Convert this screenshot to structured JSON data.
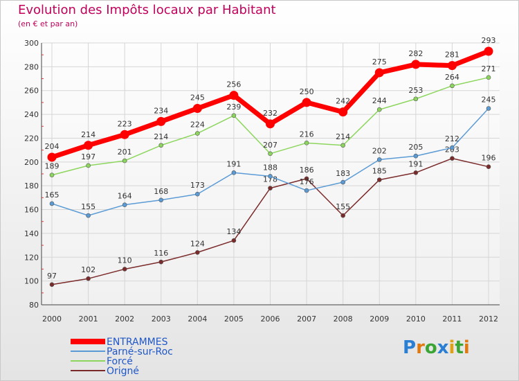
{
  "title": "Evolution des Impôts locaux par Habitant",
  "subtitle": "(en € et par an)",
  "logo": {
    "text": "Proxiti",
    "letters": [
      "P",
      "r",
      "o",
      "x",
      "i",
      "t",
      "i"
    ],
    "colors": [
      "#2a7fd4",
      "#e07a10",
      "#3aa535",
      "#2a7fd4",
      "#e0a010",
      "#3aa535",
      "#e07a10"
    ]
  },
  "chart_data": {
    "type": "line",
    "x": [
      "2000",
      "2001",
      "2002",
      "2003",
      "2004",
      "2005",
      "2006",
      "2007",
      "2008",
      "2009",
      "2010",
      "2011",
      "2012"
    ],
    "ylim": [
      80,
      300
    ],
    "yticks": [
      80,
      100,
      120,
      140,
      160,
      180,
      200,
      220,
      240,
      260,
      280,
      300
    ],
    "grid": true,
    "legend_position": "bottom-left",
    "series": [
      {
        "name": "ENTRAMMES",
        "color": "#ff0000",
        "values": [
          204,
          214,
          223,
          234,
          245,
          256,
          232,
          250,
          242,
          275,
          282,
          281,
          293
        ]
      },
      {
        "name": "Parné-sur-Roc",
        "color": "#5b9bd5",
        "values": [
          165,
          155,
          164,
          168,
          173,
          191,
          188,
          176,
          183,
          202,
          205,
          212,
          245
        ]
      },
      {
        "name": "Forcé",
        "color": "#8dd65e",
        "values": [
          189,
          197,
          201,
          214,
          224,
          239,
          207,
          216,
          214,
          244,
          253,
          264,
          271
        ]
      },
      {
        "name": "Origné",
        "color": "#7b2a2a",
        "values": [
          97,
          102,
          110,
          116,
          124,
          134,
          178,
          186,
          155,
          185,
          191,
          203,
          196
        ]
      }
    ]
  }
}
